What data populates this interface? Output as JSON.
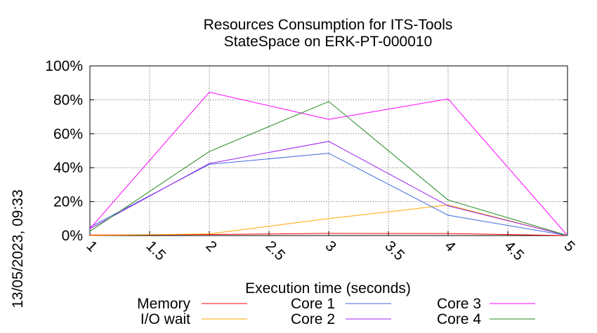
{
  "chart_data": {
    "type": "line",
    "title": "Resources Consumption for ITS-Tools",
    "subtitle": "StateSpace on ERK-PT-000010",
    "xlabel": "Execution time (seconds)",
    "ylabel": "",
    "side_label": "13/05/2023, 09:33",
    "xlim": [
      1,
      5
    ],
    "ylim": [
      0,
      100
    ],
    "x_ticks": [
      1,
      1.5,
      2,
      2.5,
      3,
      3.5,
      4,
      4.5,
      5
    ],
    "x_tick_labels": [
      "1",
      "1.5",
      "2",
      "2.5",
      "3",
      "3.5",
      "4",
      "4.5",
      "5"
    ],
    "y_ticks": [
      0,
      20,
      40,
      60,
      80,
      100
    ],
    "y_tick_labels": [
      "0%",
      "20%",
      "40%",
      "60%",
      "80%",
      "100%"
    ],
    "grid": true,
    "legend_position": "bottom",
    "x": [
      1,
      2,
      3,
      4,
      5
    ],
    "series": [
      {
        "name": "Memory",
        "color": "#ff0000",
        "values": [
          0.3,
          0.6,
          1.3,
          1.2,
          0
        ]
      },
      {
        "name": "I/O wait",
        "color": "#ffa500",
        "values": [
          0,
          1,
          10,
          18,
          0
        ]
      },
      {
        "name": "Core 1",
        "color": "#4169e1",
        "values": [
          5,
          42,
          48.5,
          12,
          0
        ]
      },
      {
        "name": "Core 2",
        "color": "#a020f0",
        "values": [
          4,
          42.5,
          55.5,
          17.5,
          0
        ]
      },
      {
        "name": "Core 3",
        "color": "#ff00ff",
        "values": [
          4,
          84.5,
          68.5,
          80.5,
          0
        ]
      },
      {
        "name": "Core 4",
        "color": "#228b22",
        "values": [
          2.5,
          49.5,
          79,
          21,
          0
        ]
      }
    ]
  }
}
